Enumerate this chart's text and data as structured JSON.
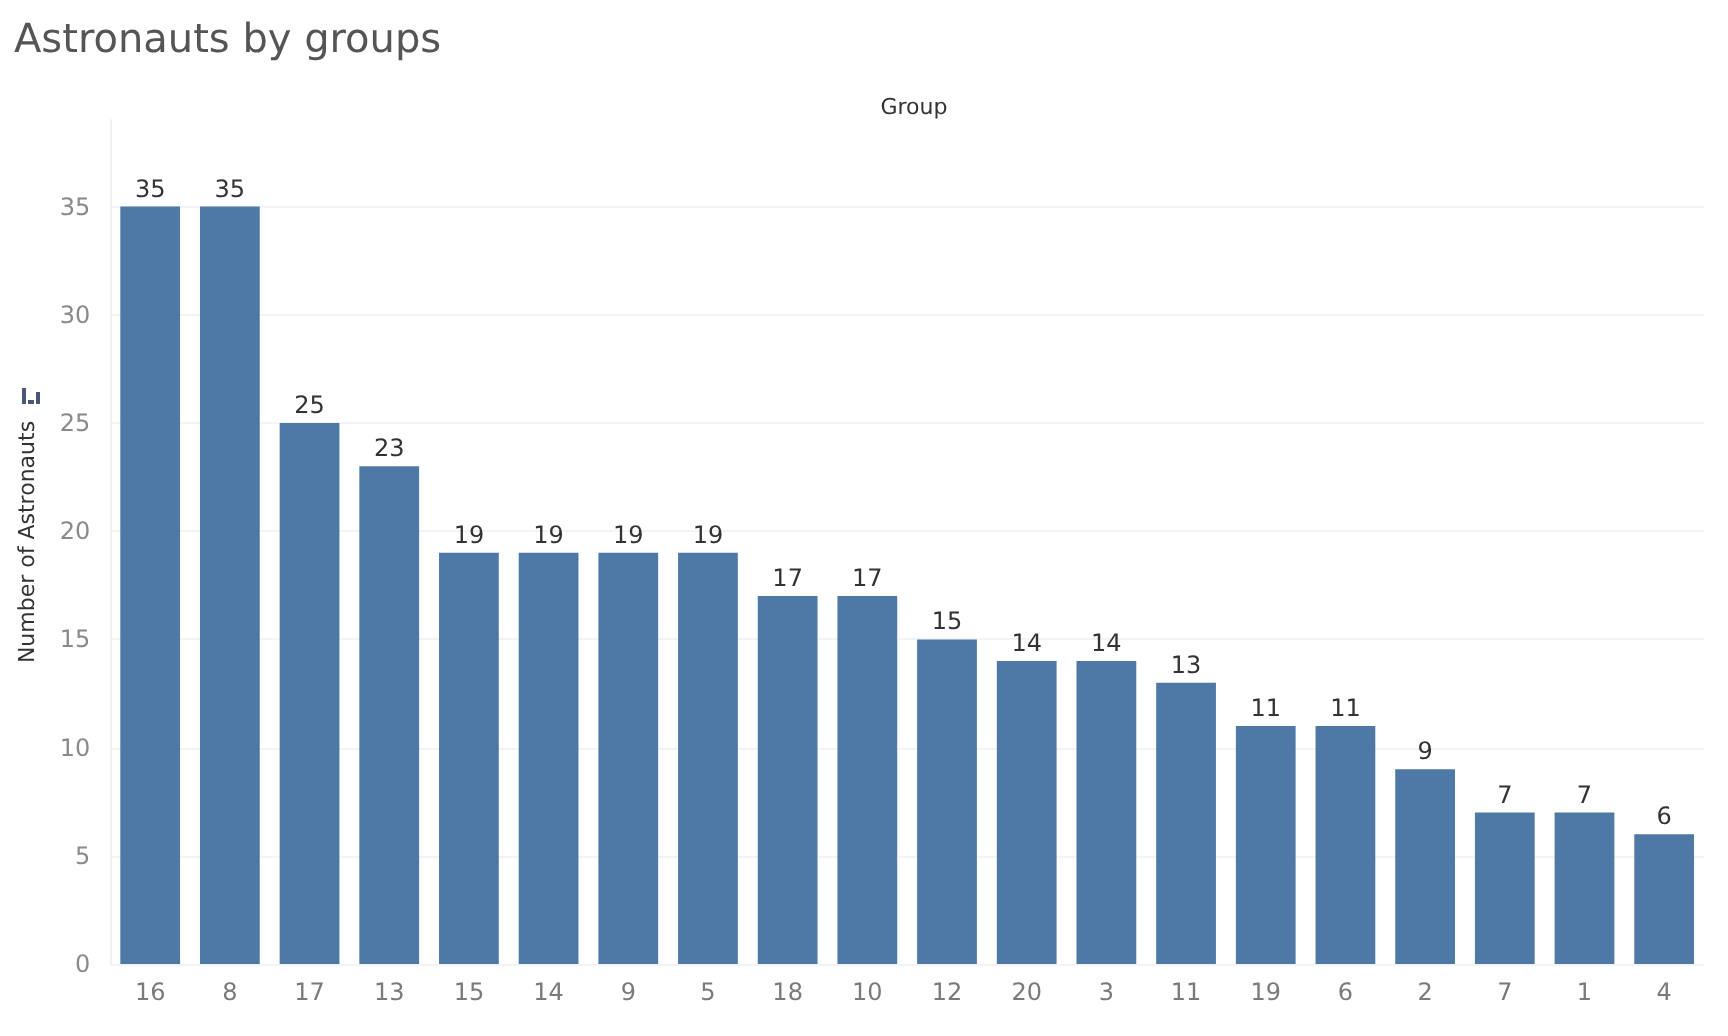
{
  "chart_data": {
    "type": "bar",
    "title": "Astronauts by groups",
    "xlabel": "Group",
    "ylabel": "Number of Astronauts",
    "categories": [
      "16",
      "8",
      "17",
      "13",
      "15",
      "14",
      "9",
      "5",
      "18",
      "10",
      "12",
      "20",
      "3",
      "11",
      "19",
      "6",
      "2",
      "7",
      "1",
      "4"
    ],
    "values": [
      35,
      35,
      25,
      23,
      19,
      19,
      19,
      19,
      17,
      17,
      15,
      14,
      14,
      13,
      11,
      11,
      9,
      7,
      7,
      6
    ],
    "color": "#4e79a7",
    "ylim": [
      0,
      39
    ],
    "yticks": [
      0,
      5,
      10,
      15,
      20,
      25,
      30,
      35
    ],
    "grid": "y",
    "data_labels": true
  }
}
